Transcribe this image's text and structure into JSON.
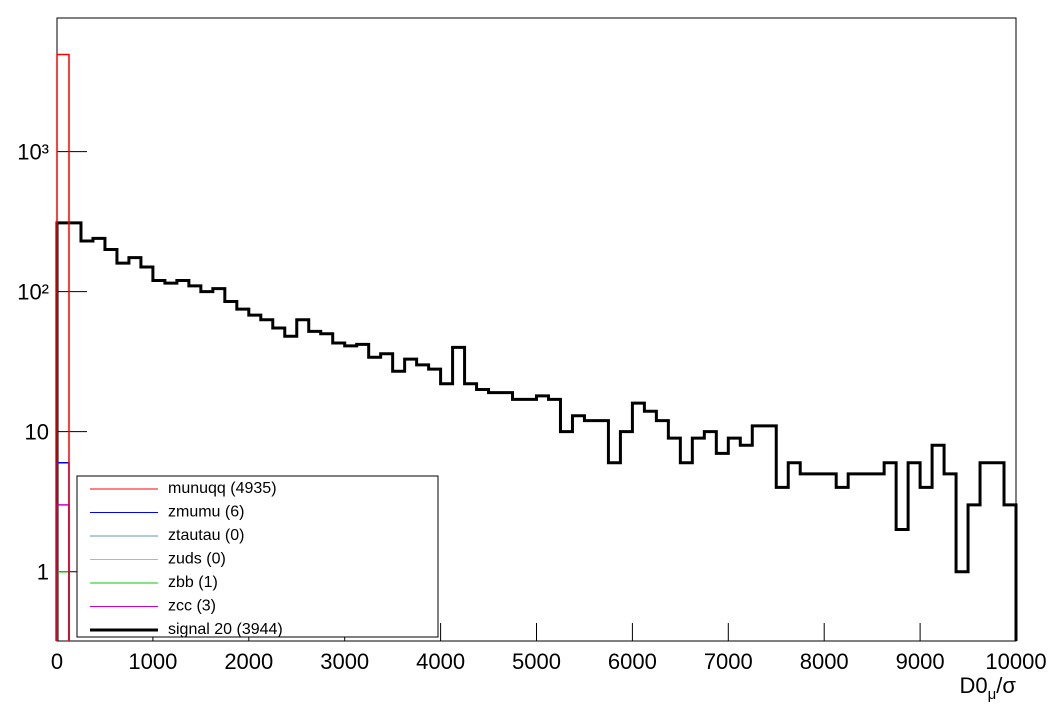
{
  "chart_data": {
    "type": "histogram",
    "xlabel": {
      "base": "D0",
      "sub": "μ",
      "rest": "/σ"
    },
    "xlim": [
      0,
      10000
    ],
    "xticks": [
      0,
      1000,
      2000,
      3000,
      4000,
      5000,
      6000,
      7000,
      8000,
      9000,
      10000
    ],
    "ylim": [
      0.32,
      9000
    ],
    "log_y": true,
    "yticks": [
      1,
      10,
      {
        "value": 100,
        "label": "10²"
      },
      {
        "value": 1000,
        "label": "10³"
      }
    ],
    "legend_position": "lower-left",
    "series": [
      {
        "name": "munuqq (4935)",
        "color": "#ff0000",
        "bins": [
          0,
          125
        ],
        "values": [
          4935
        ]
      },
      {
        "name": "zmumu (6)",
        "color": "#0000ff",
        "bins": [
          0,
          125
        ],
        "values": [
          6
        ]
      },
      {
        "name": "ztautau (0)",
        "color": "#5f9ea0"
      },
      {
        "name": "zuds (0)",
        "color": "#ffb300"
      },
      {
        "name": "zbb (1)",
        "color": "#00cc00",
        "bins": [
          0,
          125
        ],
        "values": [
          1
        ]
      },
      {
        "name": "zcc (3)",
        "color": "#cc00cc",
        "bins": [
          0,
          125
        ],
        "values": [
          3
        ]
      },
      {
        "name": "signal 20 (3944)",
        "color": "#000000",
        "width": 3,
        "bins": [
          0,
          125,
          250,
          375,
          500,
          625,
          750,
          875,
          1000,
          1125,
          1250,
          1375,
          1500,
          1625,
          1750,
          1875,
          2000,
          2125,
          2250,
          2375,
          2500,
          2625,
          2750,
          2875,
          3000,
          3125,
          3250,
          3375,
          3500,
          3625,
          3750,
          3875,
          4000,
          4125,
          4250,
          4375,
          4500,
          4625,
          4750,
          4875,
          5000,
          5125,
          5250,
          5375,
          5500,
          5625,
          5750,
          5875,
          6000,
          6125,
          6250,
          6375,
          6500,
          6625,
          6750,
          6875,
          7000,
          7125,
          7250,
          7375,
          7500,
          7625,
          7750,
          7875,
          8000,
          8125,
          8250,
          8375,
          8500,
          8625,
          8750,
          8875,
          9000,
          9125,
          9250,
          9375,
          9500,
          9625,
          9750,
          9875,
          10000
        ],
        "values": [
          310,
          310,
          230,
          240,
          200,
          160,
          175,
          150,
          120,
          115,
          120,
          110,
          100,
          105,
          85,
          75,
          68,
          63,
          55,
          48,
          63,
          52,
          50,
          43,
          41,
          42,
          34,
          36,
          27,
          33,
          30,
          28,
          22,
          40,
          22,
          20,
          19,
          19,
          17,
          17,
          18,
          17,
          10,
          13,
          12,
          12,
          6,
          10,
          16,
          14,
          12,
          9,
          6,
          9,
          10,
          7,
          9,
          8,
          11,
          11,
          4,
          6,
          5,
          5,
          5,
          4,
          5,
          5,
          5,
          6,
          2,
          6,
          4,
          8,
          5,
          1,
          3,
          6,
          6,
          3
        ]
      }
    ]
  }
}
